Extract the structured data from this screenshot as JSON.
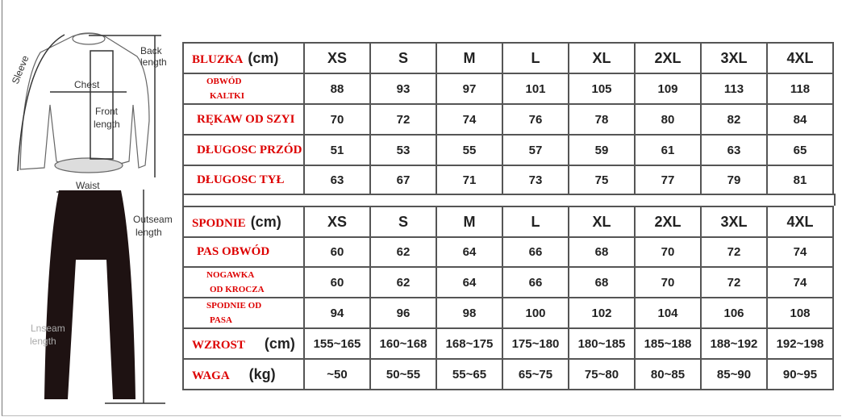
{
  "illustration": {
    "labels": {
      "sleeve": "Sleeve",
      "back_length": [
        "Back",
        "length"
      ],
      "chest": "Chest",
      "front_length": [
        "Front",
        "length"
      ],
      "waist": "Waist",
      "outseam_length": [
        "Outseam",
        "length"
      ],
      "inseam_length": [
        "Lnseam",
        "length"
      ]
    }
  },
  "sizes": [
    "XS",
    "S",
    "M",
    "L",
    "XL",
    "2XL",
    "3XL",
    "4XL"
  ],
  "top_table": {
    "title": "BLUZKA",
    "unit": "(cm)",
    "rows": [
      {
        "label": [
          "OBWÓD",
          "KALTKI"
        ],
        "values": [
          "88",
          "93",
          "97",
          "101",
          "105",
          "109",
          "113",
          "118"
        ]
      },
      {
        "label": [
          "RĘKAW OD SZYI"
        ],
        "values": [
          "70",
          "72",
          "74",
          "76",
          "78",
          "80",
          "82",
          "84"
        ]
      },
      {
        "label": [
          "DŁUGOSC PRZÓD"
        ],
        "values": [
          "51",
          "53",
          "55",
          "57",
          "59",
          "61",
          "63",
          "65"
        ]
      },
      {
        "label": [
          "DŁUGOSC TYŁ"
        ],
        "values": [
          "63",
          "67",
          "71",
          "73",
          "75",
          "77",
          "79",
          "81"
        ]
      }
    ]
  },
  "bottom_table": {
    "title": "SPODNIE",
    "unit": "(cm)",
    "rows": [
      {
        "label": [
          "PAS   OBWÓD"
        ],
        "unit": "",
        "values": [
          "60",
          "62",
          "64",
          "66",
          "68",
          "70",
          "72",
          "74"
        ]
      },
      {
        "label": [
          "NOGAWKA",
          "OD KROCZA"
        ],
        "unit": "",
        "values": [
          "60",
          "62",
          "64",
          "66",
          "68",
          "70",
          "72",
          "74"
        ]
      },
      {
        "label": [
          "SPODNIE OD",
          "PASA"
        ],
        "unit": "",
        "values": [
          "94",
          "96",
          "98",
          "100",
          "102",
          "104",
          "106",
          "108"
        ]
      },
      {
        "label": [
          "WZROST"
        ],
        "unit": "(cm)",
        "values": [
          "155~165",
          "160~168",
          "168~175",
          "175~180",
          "180~185",
          "185~188",
          "188~192",
          "192~198"
        ]
      },
      {
        "label": [
          "WAGA"
        ],
        "unit": "(kg)",
        "values": [
          "~50",
          "50~55",
          "55~65",
          "65~75",
          "75~80",
          "80~85",
          "85~90",
          "90~95"
        ]
      }
    ]
  },
  "colors": {
    "label_red": "#dd0000",
    "pants": "#1e1212",
    "border": "#555555"
  }
}
